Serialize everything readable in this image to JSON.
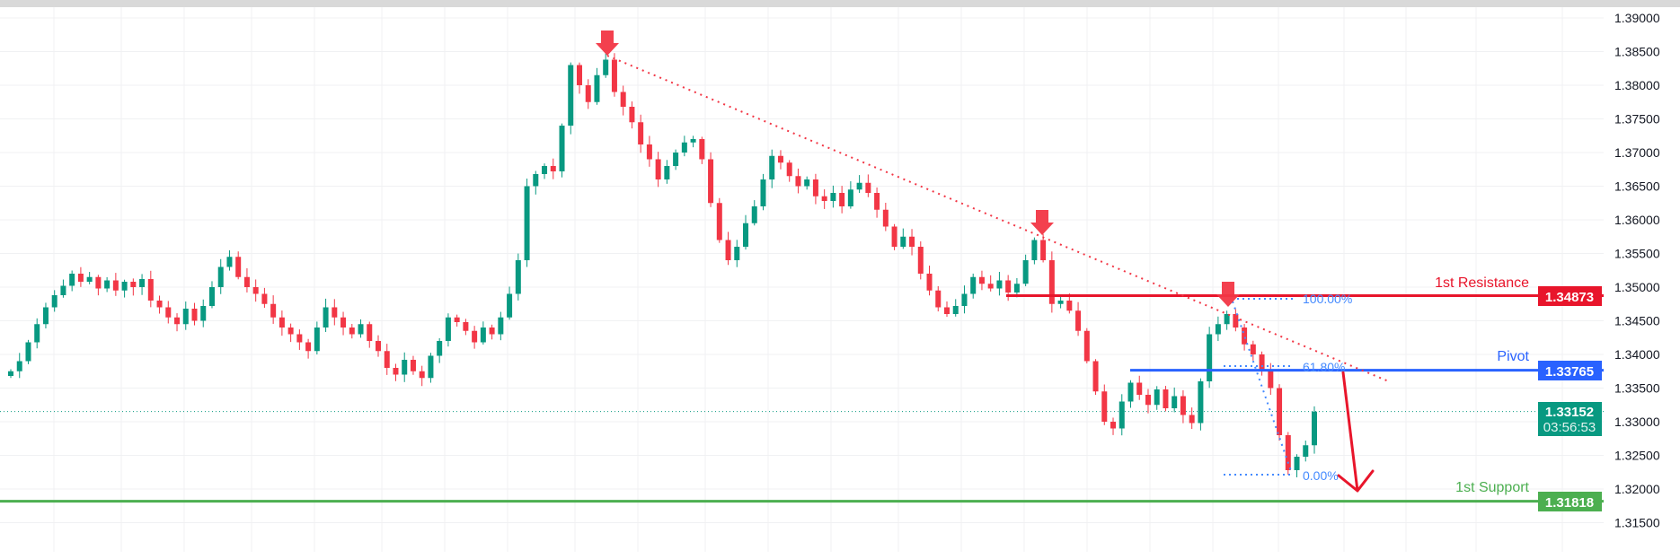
{
  "chart_data": {
    "type": "candlestick",
    "y_axis": {
      "ylim": [
        1.31,
        1.39
      ],
      "tick_labels": [
        "1.39000",
        "1.38500",
        "1.38000",
        "1.37500",
        "1.37000",
        "1.36500",
        "1.36000",
        "1.35500",
        "1.35000",
        "1.34500",
        "1.34000",
        "1.33500",
        "1.33000",
        "1.32500",
        "1.32000",
        "1.31500"
      ],
      "ticks": [
        1.39,
        1.385,
        1.38,
        1.375,
        1.37,
        1.365,
        1.36,
        1.355,
        1.35,
        1.345,
        1.34,
        1.335,
        1.33,
        1.325,
        1.32,
        1.315
      ]
    },
    "grid": true,
    "first_open": 1.3368,
    "closes": [
      1.3375,
      1.339,
      1.3418,
      1.3445,
      1.347,
      1.3488,
      1.3502,
      1.352,
      1.3508,
      1.3515,
      1.3498,
      1.351,
      1.3495,
      1.3508,
      1.35,
      1.3512,
      1.348,
      1.347,
      1.3455,
      1.3445,
      1.3468,
      1.345,
      1.3472,
      1.35,
      1.353,
      1.3545,
      1.3515,
      1.35,
      1.349,
      1.3475,
      1.3455,
      1.344,
      1.343,
      1.3418,
      1.3405,
      1.344,
      1.347,
      1.3455,
      1.344,
      1.343,
      1.3445,
      1.342,
      1.3405,
      1.338,
      1.337,
      1.3392,
      1.3375,
      1.3365,
      1.3398,
      1.342,
      1.3455,
      1.3448,
      1.3435,
      1.3418,
      1.344,
      1.343,
      1.3455,
      1.349,
      1.354,
      1.365,
      1.3668,
      1.368,
      1.3672,
      1.374,
      1.383,
      1.38,
      1.3775,
      1.3815,
      1.3838,
      1.379,
      1.3768,
      1.3745,
      1.3712,
      1.369,
      1.366,
      1.368,
      1.37,
      1.3715,
      1.372,
      1.369,
      1.3625,
      1.357,
      1.354,
      1.356,
      1.3595,
      1.362,
      1.366,
      1.3695,
      1.3685,
      1.3665,
      1.365,
      1.366,
      1.3635,
      1.3628,
      1.364,
      1.362,
      1.3645,
      1.3655,
      1.364,
      1.3615,
      1.359,
      1.356,
      1.3575,
      1.356,
      1.352,
      1.3495,
      1.347,
      1.346,
      1.3472,
      1.349,
      1.3515,
      1.3505,
      1.3498,
      1.351,
      1.3492,
      1.3505,
      1.354,
      1.357,
      1.354,
      1.3475,
      1.348,
      1.3465,
      1.3435,
      1.339,
      1.3345,
      1.33,
      1.329,
      1.333,
      1.3358,
      1.334,
      1.3325,
      1.3348,
      1.332,
      1.3338,
      1.331,
      1.3298,
      1.336,
      1.343,
      1.3445,
      1.346,
      1.344,
      1.3415,
      1.34,
      1.3375,
      1.335,
      1.328,
      1.3228,
      1.3248,
      1.3265,
      1.3315
    ],
    "levels": [
      {
        "name": "1st Resistance",
        "value": 1.34873,
        "label": "1.34873",
        "color": "#e8152b"
      },
      {
        "name": "Pivot",
        "value": 1.33765,
        "label": "1.33765",
        "color": "#2962ff"
      },
      {
        "name": "1st Support",
        "value": 1.31818,
        "label": "1.31818",
        "color": "#4caf50"
      }
    ],
    "current_price": {
      "value": 1.33152,
      "label": "1.33152",
      "countdown": "03:56:53",
      "color": "#089981"
    },
    "fibonacci": [
      {
        "label": "100.00%",
        "value": 1.3482
      },
      {
        "label": "61.80%",
        "value": 1.338
      },
      {
        "label": "0.00%",
        "value": 1.323
      }
    ],
    "trendline": {
      "style": "dotted",
      "color": "#f23645",
      "from": 1.3838,
      "to": 1.3359
    },
    "sell_arrows": 3,
    "projection_arrow": {
      "from": 1.3376,
      "to": 1.3198,
      "color": "#e8152b"
    },
    "colors": {
      "up": "#089981",
      "down": "#f23645",
      "fib": "#448aff"
    }
  }
}
